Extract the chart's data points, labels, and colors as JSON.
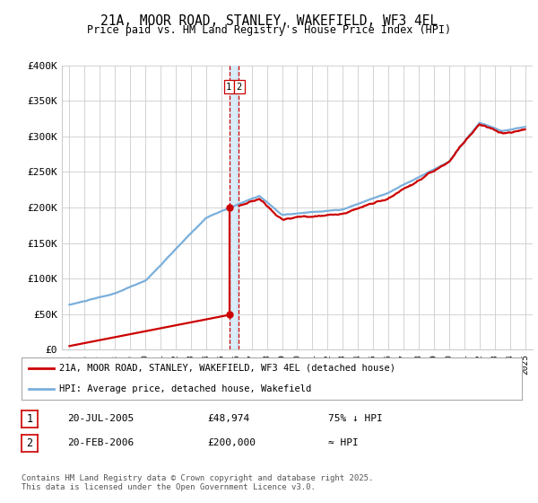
{
  "title": "21A, MOOR ROAD, STANLEY, WAKEFIELD, WF3 4EL",
  "subtitle": "Price paid vs. HM Land Registry's House Price Index (HPI)",
  "ylim": [
    0,
    400000
  ],
  "yticks": [
    0,
    50000,
    100000,
    150000,
    200000,
    250000,
    300000,
    350000,
    400000
  ],
  "ytick_labels": [
    "£0",
    "£50K",
    "£100K",
    "£150K",
    "£200K",
    "£250K",
    "£300K",
    "£350K",
    "£400K"
  ],
  "xlim_min": 1994.5,
  "xlim_max": 2025.5,
  "transaction1": {
    "date_num": 2005.55,
    "price": 48974,
    "label": "1",
    "date_str": "20-JUL-2005",
    "amount": "£48,974",
    "hpi_rel": "75% ↓ HPI"
  },
  "transaction2": {
    "date_num": 2006.13,
    "price": 200000,
    "label": "2",
    "date_str": "20-FEB-2006",
    "amount": "£200,000",
    "hpi_rel": "≈ HPI"
  },
  "legend_line1": "21A, MOOR ROAD, STANLEY, WAKEFIELD, WF3 4EL (detached house)",
  "legend_line2": "HPI: Average price, detached house, Wakefield",
  "footnote": "Contains HM Land Registry data © Crown copyright and database right 2025.\nThis data is licensed under the Open Government Licence v3.0.",
  "red_color": "#cc0000",
  "blue_color": "#7aafdb",
  "blue_band_color": "#d0e8f5",
  "background_color": "#ffffff",
  "grid_color": "#cccccc",
  "title_fontsize": 10.5,
  "subtitle_fontsize": 8.5,
  "tick_fontsize": 8
}
